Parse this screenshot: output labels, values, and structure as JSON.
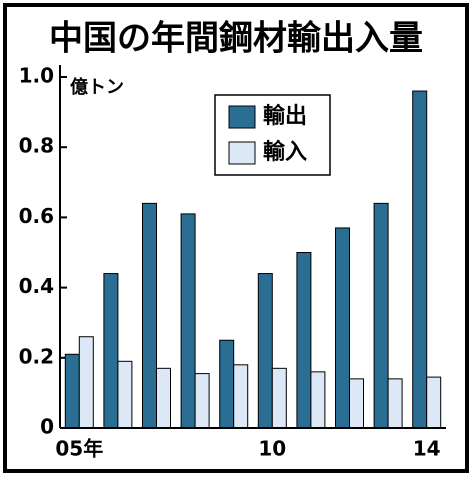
{
  "chart_data": {
    "type": "bar",
    "title": "中国の年間鋼材輸出入量",
    "unit_label": "億トン",
    "categories": [
      "05年",
      null,
      null,
      null,
      null,
      "10",
      null,
      null,
      null,
      "14"
    ],
    "series": [
      {
        "name": "輸出",
        "color": "#2a6f93",
        "values": [
          0.21,
          0.44,
          0.64,
          0.61,
          0.25,
          0.44,
          0.5,
          0.57,
          0.64,
          0.96
        ]
      },
      {
        "name": "輸入",
        "color": "#dce8f6",
        "values": [
          0.26,
          0.19,
          0.17,
          0.155,
          0.18,
          0.17,
          0.16,
          0.14,
          0.14,
          0.145
        ]
      }
    ],
    "ylim": [
      0,
      1
    ],
    "yticks": [
      0,
      0.2,
      0.4,
      0.6,
      0.8,
      {
        "value": 1,
        "label": "1.0"
      }
    ],
    "grid": false,
    "legend": "top-right"
  }
}
